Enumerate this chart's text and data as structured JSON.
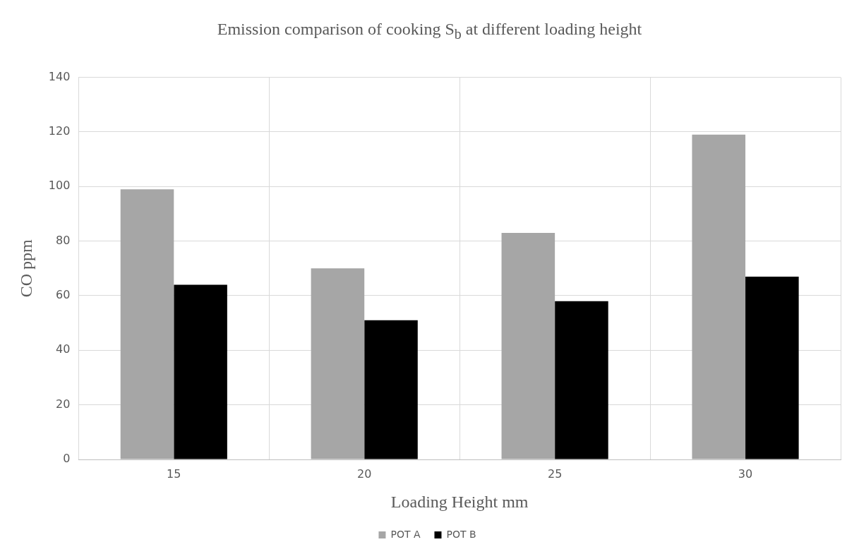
{
  "chart_data": {
    "type": "bar",
    "title": "Emission comparison  of cooking S$_{b}$ at different loading height",
    "xlabel": "Loading Height mm",
    "ylabel": "CO ppm",
    "categories": [
      "15",
      "20",
      "25",
      "30"
    ],
    "series": [
      {
        "name": "POT A",
        "color": "#a6a6a6",
        "values": [
          99,
          70,
          83,
          119
        ]
      },
      {
        "name": "POT B",
        "color": "#000000",
        "values": [
          64,
          51,
          58,
          67
        ]
      }
    ],
    "ylim": [
      0,
      140
    ],
    "yticks": [
      0,
      20,
      40,
      60,
      80,
      100,
      120,
      140
    ],
    "grid": true,
    "legend": "bottom"
  }
}
